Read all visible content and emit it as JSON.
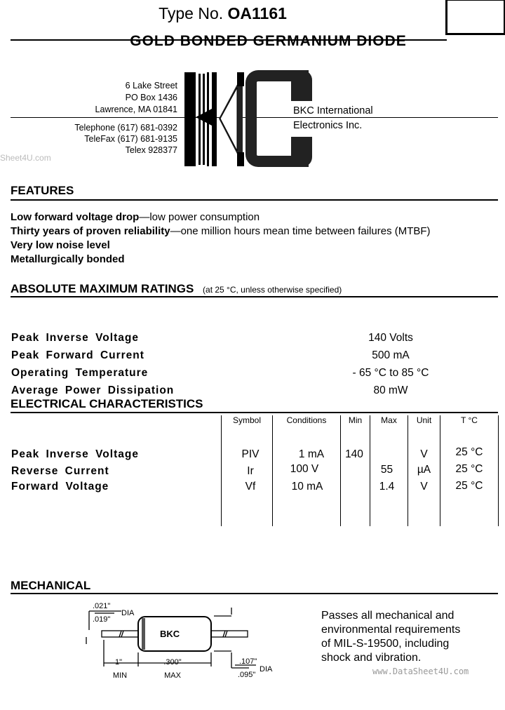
{
  "header": {
    "type_prefix": "Type No.",
    "type_number": "OA1161",
    "subtitle": "GOLD BONDED GERMANIUM DIODE"
  },
  "company": {
    "address": [
      "6 Lake Street",
      "PO Box 1436",
      "Lawrence, MA  01841"
    ],
    "contact": [
      "Telephone (617) 681-0392",
      "TeleFax (617) 681-9135",
      "Telex 928377"
    ],
    "name_lines": [
      "BKC International",
      "Electronics Inc."
    ],
    "logo_text": "BKC"
  },
  "watermarks": {
    "left": "Sheet4U.com",
    "bottom": "www.DataSheet4U.com"
  },
  "features": {
    "heading": "FEATURES",
    "items": [
      {
        "bold": "Low forward voltage drop",
        "rest": "—low power consumption"
      },
      {
        "bold": "Thirty years of proven reliability",
        "rest": "—one million hours mean time between failures (MTBF)"
      },
      {
        "bold": "Very low noise level",
        "rest": ""
      },
      {
        "bold": "Metallurgically bonded",
        "rest": ""
      }
    ]
  },
  "ratings": {
    "heading": "ABSOLUTE MAXIMUM RATINGS",
    "note": "(at 25 °C, unless otherwise specified)",
    "rows": [
      {
        "label": "Peak Inverse Voltage",
        "value": "140 Volts"
      },
      {
        "label": "Peak Forward Current",
        "value": "500 mA"
      },
      {
        "label": "Operating Temperature",
        "value": "- 65 °C to 85 °C"
      },
      {
        "label": "Average Power Dissipation",
        "value": "80 mW"
      }
    ]
  },
  "electrical": {
    "heading": "ELECTRICAL CHARACTERISTICS",
    "columns": [
      "Symbol",
      "Conditions",
      "Min",
      "Max",
      "Unit",
      "T °C"
    ],
    "rows": [
      {
        "label": "Peak Inverse Voltage",
        "symbol": "PIV",
        "conditions": "1 mA",
        "min": "140",
        "max": "",
        "unit": "V",
        "temp": "25 °C"
      },
      {
        "label": "Reverse Current",
        "symbol": "Ir",
        "conditions": "100 V",
        "min": "",
        "max": "55",
        "unit": "µA",
        "temp": "25 °C"
      },
      {
        "label": "Forward Voltage",
        "symbol": "Vf",
        "conditions": "10 mA",
        "min": "",
        "max": "1.4",
        "unit": "V",
        "temp": "25 °C"
      }
    ]
  },
  "mechanical": {
    "heading": "MECHANICAL",
    "lead_dia_max": ".021\"",
    "lead_dia_min": ".019\"",
    "dia_label": "DIA",
    "body_text": "BKC",
    "lead_len": "1\"",
    "lead_len_note": "MIN",
    "body_len": ".300\"",
    "body_len_note": "MAX",
    "body_dia_max": ".107\"",
    "body_dia_min": ".095\"",
    "description": [
      "Passes all mechanical and",
      "environmental requirements",
      "of MIL-S-19500, including",
      "shock and vibration."
    ]
  }
}
